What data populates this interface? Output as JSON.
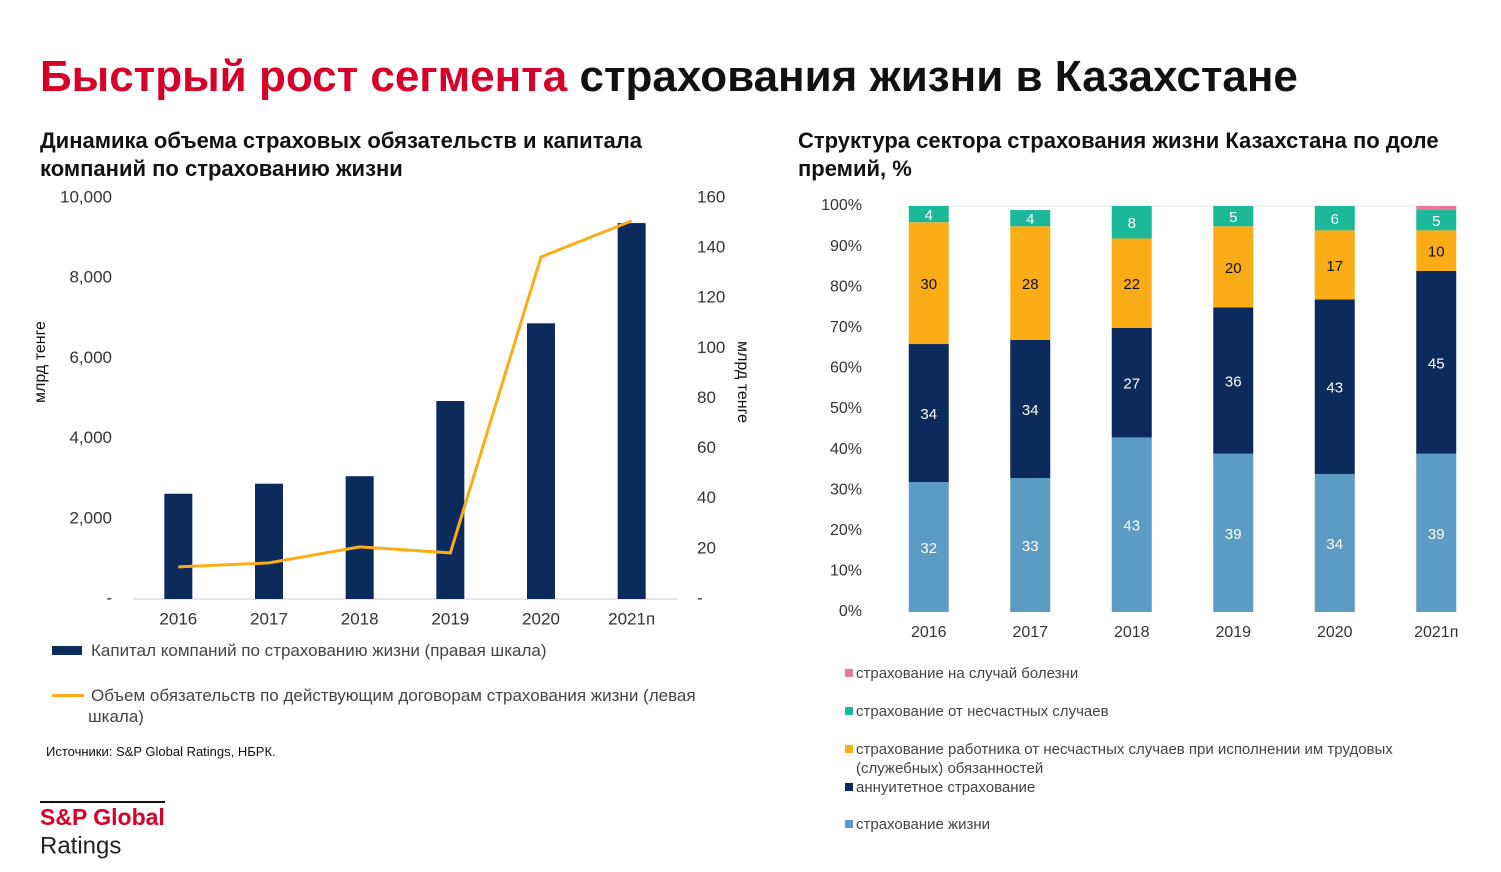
{
  "title_red": "Быстрый рост сегмента",
  "title_black": "страхования жизни в Казахстане",
  "chart_data": [
    {
      "type": "bar_line",
      "title": "Динамика объема страховых обязательств и капитала компаний по страхованию жизни",
      "ylabel": "млрд тенге",
      "y2label": "млрд тенге",
      "categories": [
        "2016",
        "2017",
        "2018",
        "2019",
        "2020",
        "2021п"
      ],
      "series": [
        {
          "name": "Капитал компаний по страхованию жизни (правая шкала)",
          "color": "#0d2a5c",
          "type": "bar",
          "axis": "y2",
          "values": [
            42,
            46,
            49,
            79,
            110,
            150
          ]
        },
        {
          "name": "Объем обязательств по действующим договорам страхования жизни (левая шкала)",
          "color": "#fbad18",
          "type": "line",
          "values": [
            800,
            900,
            1300,
            1150,
            8530,
            9430
          ]
        }
      ],
      "ylim": [
        0,
        10000
      ],
      "yticks": [
        {
          "value": 0,
          "label": "-"
        },
        {
          "value": 2000,
          "label": "2,000"
        },
        {
          "value": 4000,
          "label": "4,000"
        },
        {
          "value": 6000,
          "label": "6,000"
        },
        {
          "value": 8000,
          "label": "8,000"
        },
        {
          "value": 10000,
          "label": "10,000"
        }
      ],
      "y2lim": [
        0,
        160
      ],
      "y2ticks": [
        {
          "value": 0,
          "label": "-"
        },
        20,
        40,
        60,
        80,
        100,
        120,
        140,
        160
      ],
      "grid": false
    },
    {
      "type": "stacked_bar",
      "title": "Структура сектора страхования жизни Казахстана по доле премий, %",
      "categories": [
        "2016",
        "2017",
        "2018",
        "2019",
        "2020",
        "2021п"
      ],
      "series": [
        {
          "name": "страхование жизни",
          "color": "#5b9bc4",
          "values": [
            32,
            33,
            43,
            39,
            34,
            39
          ]
        },
        {
          "name": "аннуитетное страхование",
          "color": "#0d2a5c",
          "values": [
            34,
            34,
            27,
            36,
            43,
            45
          ]
        },
        {
          "name": "страхование работника от несчастных случаев при исполнении им трудовых (служебных) обязанностей",
          "color": "#fbad18",
          "values": [
            30,
            28,
            22,
            20,
            17,
            10
          ]
        },
        {
          "name": "страхование от несчастных случаев",
          "color": "#1bb99a",
          "values": [
            4,
            4,
            8,
            5,
            6,
            5
          ]
        },
        {
          "name": "страхование на случай болезни",
          "color": "#e8799b",
          "values": [
            0,
            0,
            0,
            0,
            0,
            1
          ]
        }
      ],
      "ylim": [
        0,
        100
      ],
      "yticks": [
        {
          "value": 0,
          "label": "0%"
        },
        {
          "value": 10,
          "label": "10%"
        },
        {
          "value": 20,
          "label": "20%"
        },
        {
          "value": 30,
          "label": "30%"
        },
        {
          "value": 40,
          "label": "40%"
        },
        {
          "value": 50,
          "label": "50%"
        },
        {
          "value": 60,
          "label": "60%"
        },
        {
          "value": 70,
          "label": "70%"
        },
        {
          "value": 80,
          "label": "80%"
        },
        {
          "value": 90,
          "label": "90%"
        },
        {
          "value": 100,
          "label": "100%"
        }
      ],
      "grid": false
    }
  ],
  "source": "Источники: S&P Global Ratings, НБРК.",
  "logo": {
    "line1": "S&P Global",
    "line2": "Ratings"
  }
}
